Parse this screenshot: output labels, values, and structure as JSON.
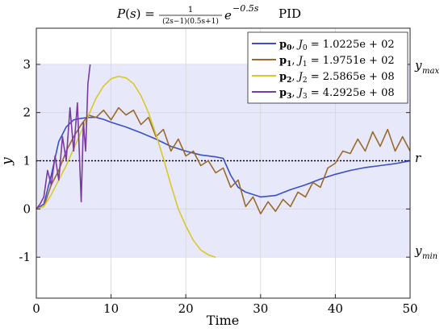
{
  "chart_data": {
    "type": "line",
    "title_math": "P(s) =  ",
    "title_fraction_num": "1",
    "title_fraction_den": "(2s−1)(0.5s+1)",
    "title_exp_base": "e",
    "title_exp_sup": "−0.5s",
    "title_suffix": "PID",
    "xlabel": "Time",
    "ylabel": "y",
    "xlim": [
      0,
      50
    ],
    "ylim": [
      -1.85,
      3.75
    ],
    "xticks": [
      0,
      10,
      20,
      30,
      40,
      50
    ],
    "yticks": [
      -1,
      0,
      1,
      2,
      3
    ],
    "ytick_labels": [
      "-1",
      "0",
      "1",
      "2",
      "3"
    ],
    "xtick_labels": [
      "0",
      "10",
      "20",
      "30",
      "40",
      "50"
    ],
    "grid": true,
    "legend_position": "top-right",
    "constraint_band": {
      "ymin": -1,
      "ymax": 3,
      "color": "#e8e8fb"
    },
    "reference": {
      "value": 1,
      "label": "r"
    },
    "right_labels": {
      "ymax": "y",
      "ymax_sub": "max",
      "ymin": "y",
      "ymin_sub": "min",
      "r": "r"
    },
    "series": [
      {
        "name": "p0, J0 = 1.0225e+02",
        "legend_main": "p",
        "legend_sub": "0",
        "legend_J": "J",
        "legend_Jsub": "0",
        "legend_value": " = 1.0225e + 02",
        "color": "#3a4fc8",
        "x": [
          0,
          1,
          2,
          3,
          4,
          5,
          6,
          7,
          8,
          9,
          10,
          12,
          14,
          16,
          18,
          20,
          22,
          24,
          25,
          26,
          27,
          28,
          30,
          32,
          34,
          36,
          38,
          40,
          42,
          44,
          46,
          48,
          50
        ],
        "y": [
          0,
          0.1,
          0.7,
          1.4,
          1.7,
          1.85,
          1.88,
          1.9,
          1.9,
          1.86,
          1.8,
          1.7,
          1.58,
          1.45,
          1.3,
          1.2,
          1.12,
          1.08,
          1.05,
          0.7,
          0.45,
          0.35,
          0.25,
          0.28,
          0.4,
          0.5,
          0.62,
          0.72,
          0.8,
          0.86,
          0.9,
          0.94,
          1.0
        ]
      },
      {
        "name": "p1, J1 = 1.9751e+02",
        "legend_main": "p",
        "legend_sub": "1",
        "legend_J": "J",
        "legend_Jsub": "1",
        "legend_value": " = 1.9751e + 02",
        "color": "#9a6a2a",
        "x": [
          0,
          1,
          2,
          3,
          4,
          5,
          6,
          7,
          8,
          9,
          10,
          11,
          12,
          13,
          14,
          15,
          16,
          17,
          18,
          19,
          20,
          21,
          22,
          23,
          24,
          25,
          26,
          27,
          28,
          29,
          30,
          31,
          32,
          33,
          34,
          35,
          36,
          37,
          38,
          39,
          40,
          41,
          42,
          43,
          44,
          45,
          46,
          47,
          48,
          49,
          50
        ],
        "y": [
          0,
          0.05,
          0.5,
          0.8,
          1.2,
          1.5,
          1.75,
          1.95,
          1.9,
          2.05,
          1.85,
          2.1,
          1.95,
          2.05,
          1.75,
          1.9,
          1.5,
          1.65,
          1.2,
          1.45,
          1.1,
          1.2,
          0.9,
          1.0,
          0.75,
          0.85,
          0.45,
          0.6,
          0.05,
          0.25,
          -0.1,
          0.15,
          -0.05,
          0.2,
          0.05,
          0.35,
          0.25,
          0.55,
          0.45,
          0.85,
          0.95,
          1.2,
          1.15,
          1.45,
          1.2,
          1.6,
          1.3,
          1.65,
          1.2,
          1.5,
          1.2
        ]
      },
      {
        "name": "p2, J2 = 2.5865e+08",
        "legend_main": "p",
        "legend_sub": "2",
        "legend_J": "J",
        "legend_Jsub": "2",
        "legend_value": " = 2.5865e + 08",
        "color": "#d8c82a",
        "x": [
          0,
          1,
          2,
          3,
          4,
          5,
          6,
          7,
          8,
          9,
          10,
          11,
          12,
          13,
          14,
          15,
          16,
          17,
          18,
          19,
          20,
          21,
          22,
          23,
          24
        ],
        "y": [
          0,
          0.05,
          0.3,
          0.6,
          0.9,
          1.25,
          1.6,
          1.95,
          2.3,
          2.55,
          2.7,
          2.75,
          2.72,
          2.6,
          2.35,
          2.0,
          1.55,
          1.05,
          0.5,
          0.0,
          -0.35,
          -0.65,
          -0.85,
          -0.95,
          -1.0
        ]
      },
      {
        "name": "p3, J3 = 4.2925e+08",
        "legend_main": "p",
        "legend_sub": "3",
        "legend_J": "J",
        "legend_Jsub": "3",
        "legend_value": " = 4.2925e + 08",
        "color": "#7a3aa0",
        "x": [
          0,
          0.5,
          1,
          1.5,
          2,
          2.5,
          3,
          3.5,
          4,
          4.5,
          5,
          5.5,
          6,
          6.3,
          6.6,
          6.9,
          7.2
        ],
        "y": [
          0,
          0.1,
          0.25,
          0.8,
          0.5,
          1.1,
          0.6,
          1.5,
          1.0,
          2.1,
          1.2,
          2.2,
          0.15,
          1.8,
          1.2,
          2.6,
          3.0
        ]
      }
    ]
  }
}
